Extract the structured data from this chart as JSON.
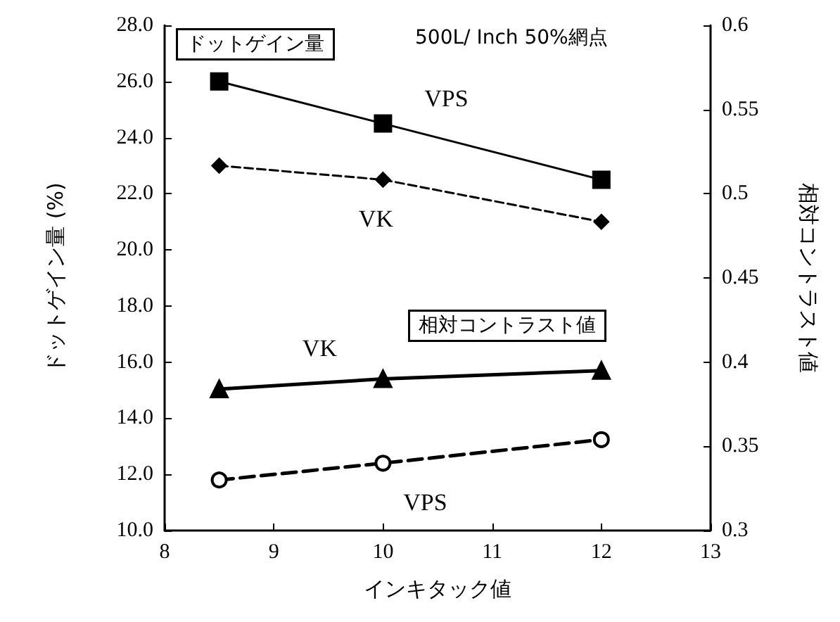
{
  "chart_data": {
    "type": "line",
    "xlabel": "インキタック値",
    "ylabel": "ドットゲイン量 (%)",
    "y2label": "相対コントラスト値",
    "annotations": [
      "ドットゲイン量",
      "500L/ Inch 50%網点",
      "相対コントラスト値"
    ],
    "x": [
      8.5,
      10,
      12
    ],
    "series": [
      {
        "name": "VPS",
        "color": "#000000",
        "values": [
          26.0,
          24.5,
          22.5
        ],
        "marker": "square",
        "line_style": "solid"
      },
      {
        "name": "VK",
        "color": "#000000",
        "values": [
          23.0,
          22.5,
          21.0
        ],
        "marker": "diamond",
        "line_style": "dashed"
      },
      {
        "name": "VK",
        "color": "#000000",
        "values": [
          0.384,
          0.39,
          0.395
        ],
        "marker": "triangle",
        "line_style": "solid",
        "axis": "y2"
      },
      {
        "name": "VPS",
        "color": "#000000",
        "values": [
          0.33,
          0.34,
          0.354
        ],
        "marker": "circle",
        "line_style": "dashed",
        "axis": "y2"
      }
    ],
    "xlim": [
      8,
      13
    ],
    "xticks": [
      8,
      9,
      10,
      11,
      12,
      13
    ],
    "ylim": [
      10,
      28
    ],
    "yticks": [
      {
        "value": 10,
        "label": "10.0"
      },
      {
        "value": 12,
        "label": "12.0"
      },
      {
        "value": 14,
        "label": "14.0"
      },
      {
        "value": 16,
        "label": "16.0"
      },
      {
        "value": 18,
        "label": "18.0"
      },
      {
        "value": 20,
        "label": "20.0"
      },
      {
        "value": 22,
        "label": "22.0"
      },
      {
        "value": 24,
        "label": "24.0"
      },
      {
        "value": 26,
        "label": "26.0"
      },
      {
        "value": 28,
        "label": "28.0"
      }
    ],
    "y2lim": [
      0.3,
      0.6
    ],
    "y2ticks": [
      0.3,
      0.35,
      0.4,
      0.45,
      0.5,
      0.55,
      0.6
    ],
    "grid": false,
    "legend": false
  }
}
